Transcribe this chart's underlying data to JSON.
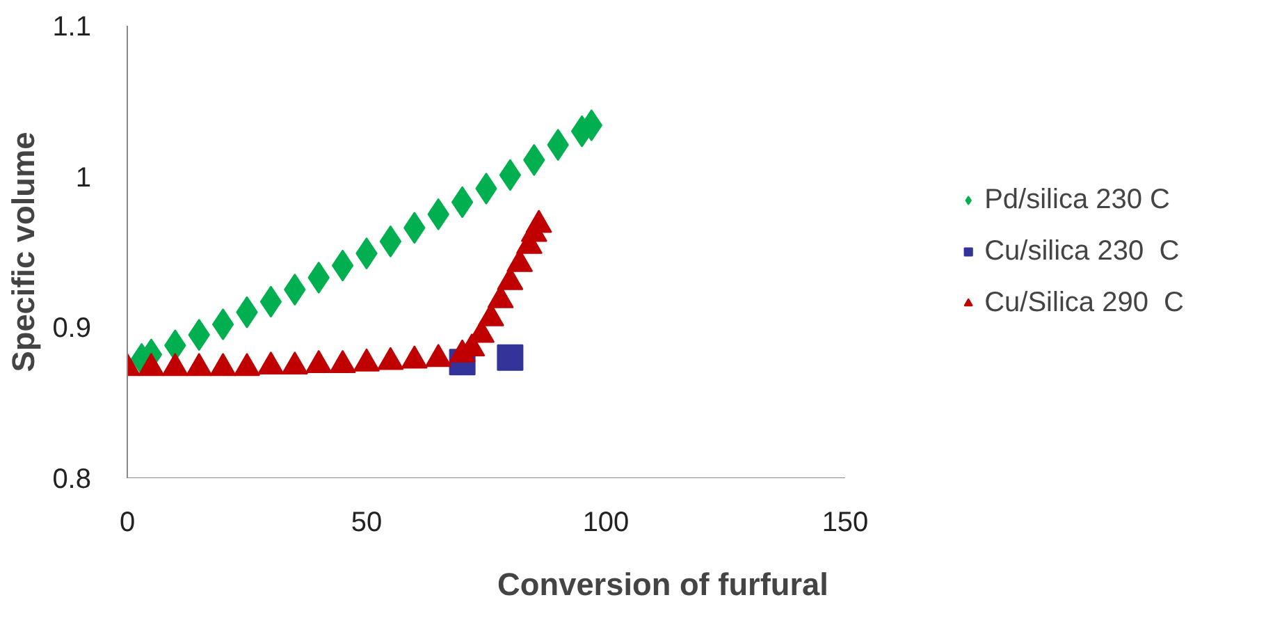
{
  "chart_data": {
    "type": "scatter",
    "xlabel": "Conversion of furfural",
    "ylabel": "Specific volume",
    "xlim": [
      0,
      150
    ],
    "ylim": [
      0.8,
      1.1
    ],
    "xticks": [
      0,
      50,
      100,
      150
    ],
    "yticks": [
      0.8,
      0.9,
      {
        "value": 1.0,
        "label": "1"
      },
      1.1
    ],
    "grid": false,
    "legend": "right",
    "series": [
      {
        "name": "Pd/silica 230 C",
        "color": "#00b050",
        "marker": "diamond",
        "x": [
          3,
          5,
          10,
          15,
          20,
          25,
          30,
          35,
          40,
          45,
          50,
          55,
          60,
          65,
          70,
          75,
          80,
          85,
          90,
          95,
          97
        ],
        "values": [
          0.879,
          0.882,
          0.888,
          0.895,
          0.902,
          0.91,
          0.917,
          0.925,
          0.933,
          0.941,
          0.949,
          0.957,
          0.966,
          0.975,
          0.983,
          0.992,
          1.001,
          1.011,
          1.021,
          1.03,
          1.034
        ]
      },
      {
        "name": "Cu/silica 230  C",
        "color": "#333399",
        "marker": "square",
        "x": [
          70,
          80
        ],
        "values": [
          0.877,
          0.88
        ]
      },
      {
        "name": "Cu/Silica 290  C",
        "color": "#c00000",
        "marker": "triangle",
        "x": [
          0,
          5,
          10,
          15,
          20,
          25,
          30,
          35,
          40,
          45,
          50,
          55,
          60,
          65,
          70,
          72,
          74,
          76,
          78,
          80,
          82,
          84,
          85,
          86
        ],
        "values": [
          0.873,
          0.873,
          0.873,
          0.873,
          0.873,
          0.873,
          0.874,
          0.874,
          0.875,
          0.875,
          0.876,
          0.877,
          0.878,
          0.879,
          0.882,
          0.886,
          0.895,
          0.906,
          0.918,
          0.93,
          0.942,
          0.954,
          0.962,
          0.968
        ]
      }
    ]
  }
}
